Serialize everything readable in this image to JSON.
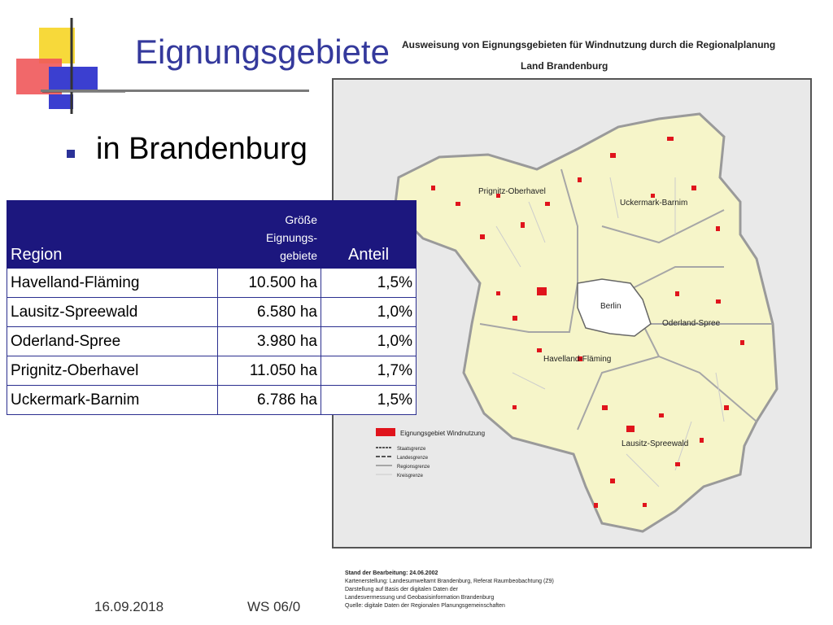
{
  "slide": {
    "title": "Eignungsgebiete",
    "bullet": "in Brandenburg"
  },
  "map": {
    "header_line1": "Ausweisung von Eignungsgebieten für Windnutzung durch die Regionalplanung",
    "header_line2": "Land Brandenburg",
    "regions": [
      "Prignitz-Oberhavel",
      "Uckermark-Barnim",
      "Berlin",
      "Oderland-Spree",
      "Havelland-Fläming",
      "Lausitz-Spreewald"
    ],
    "legend": {
      "area": "Eignungsgebiet Windnutzung",
      "lines": [
        "Staatsgrenze",
        "Landesgrenze",
        "Regionsgrenze",
        "Kreisgrenze"
      ]
    },
    "footer": {
      "stand": "Stand der Bearbeitung: 24.06.2002",
      "line1": "Kartenerstellung: Landesumweltamt Brandenburg, Referat Raumbeobachtung (Z9)",
      "line2": "Darstellung auf Basis der digitalen Daten der",
      "line3": "Landesvermessung und Geobasisinformation Brandenburg",
      "line4": "Quelle: digitale Daten der Regionalen Planungsgemeinschaften"
    },
    "colors": {
      "land": "#f6f5c9",
      "wind": "#e0141c",
      "border": "#a6a6a6",
      "frame_bg": "#e9e9e9"
    }
  },
  "table": {
    "headers": {
      "region": "Region",
      "area_line1": "Größe",
      "area_line2": "Eignungs-",
      "area_line3": "gebiete",
      "share": "Anteil"
    },
    "rows": [
      {
        "region": "Havelland-Fläming",
        "area": "10.500 ha",
        "share": "1,5%"
      },
      {
        "region": "Lausitz-Spreewald",
        "area": "6.580 ha",
        "share": "1,0%"
      },
      {
        "region": "Oderland-Spree",
        "area": "3.980 ha",
        "share": "1,0%"
      },
      {
        "region": "Prignitz-Oberhavel",
        "area": "11.050 ha",
        "share": "1,7%"
      },
      {
        "region": "Uckermark-Barnim",
        "area": "6.786 ha",
        "share": "1,5%"
      }
    ]
  },
  "footer": {
    "date": "16.09.2018",
    "course": "WS 06/0"
  },
  "colors": {
    "title": "#34399c",
    "table_header": "#1c177e",
    "bullet": "#2b3298"
  }
}
